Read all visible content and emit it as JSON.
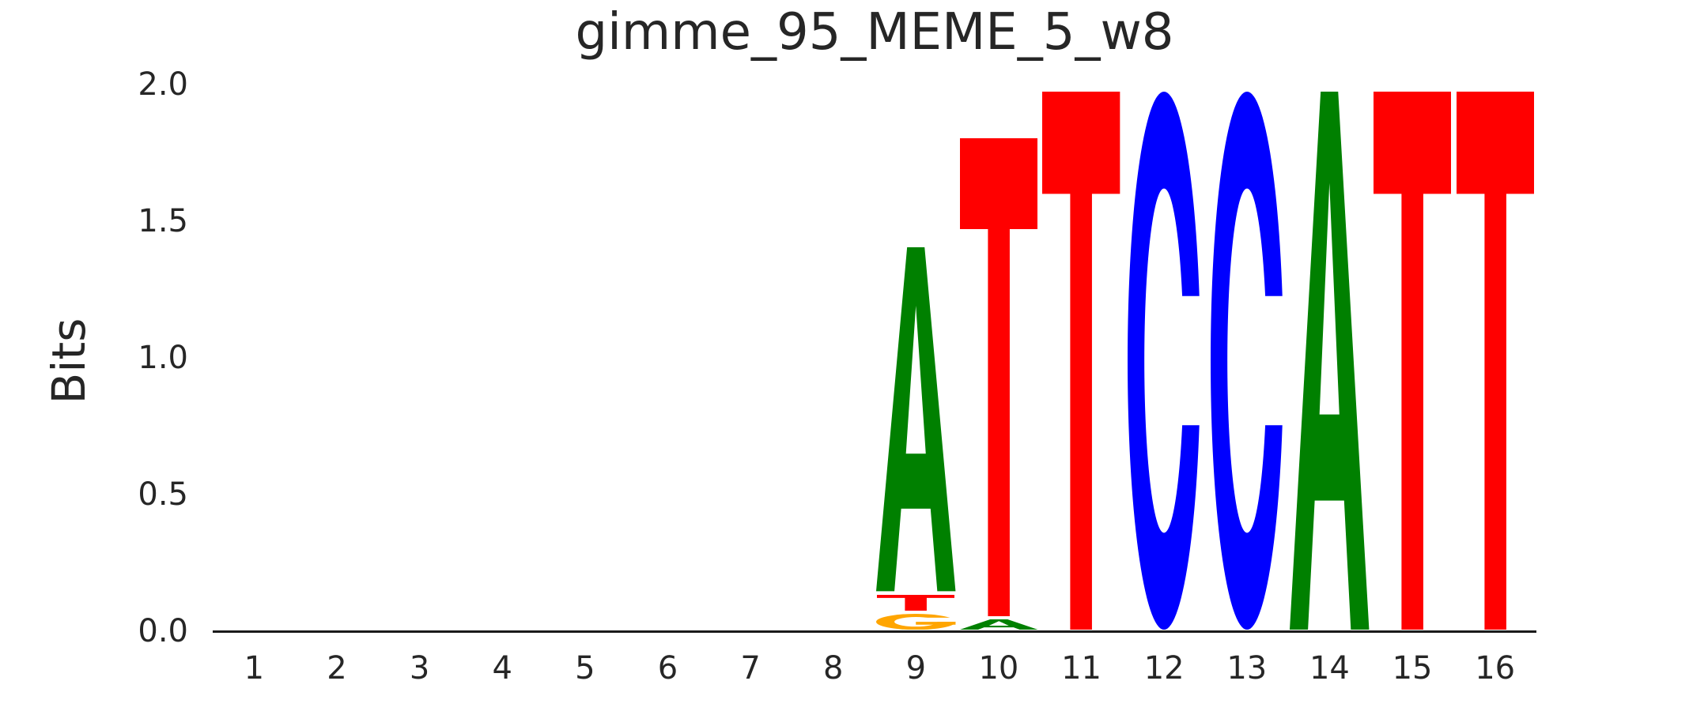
{
  "chart_data": {
    "type": "bar",
    "subtype": "sequence_logo",
    "title": "gimme_95_MEME_5_w8",
    "xlabel": "",
    "ylabel": "Bits",
    "ylim": [
      0,
      2.0
    ],
    "yticks": [
      {
        "value": 0.0,
        "label": "0.0"
      },
      {
        "value": 0.5,
        "label": "0.5"
      },
      {
        "value": 1.0,
        "label": "1.0"
      },
      {
        "value": 1.5,
        "label": "1.5"
      },
      {
        "value": 2.0,
        "label": "2.0"
      }
    ],
    "xticks": [
      "1",
      "2",
      "3",
      "4",
      "5",
      "6",
      "7",
      "8",
      "9",
      "10",
      "11",
      "12",
      "13",
      "14",
      "15",
      "16"
    ],
    "grid": false,
    "legend": "none",
    "letter_colors": {
      "A": "#008000",
      "C": "#0000ff",
      "G": "#ffa500",
      "T": "#ff0000"
    },
    "consensus_positions_9_to_16": "ATTCCATT",
    "stacks": [
      {
        "position": 1,
        "letters": []
      },
      {
        "position": 2,
        "letters": []
      },
      {
        "position": 3,
        "letters": []
      },
      {
        "position": 4,
        "letters": []
      },
      {
        "position": 5,
        "letters": []
      },
      {
        "position": 6,
        "letters": []
      },
      {
        "position": 7,
        "letters": []
      },
      {
        "position": 8,
        "letters": []
      },
      {
        "position": 9,
        "letters": [
          {
            "base": "G",
            "bits": 0.07
          },
          {
            "base": "T",
            "bits": 0.07
          },
          {
            "base": "A",
            "bits": 1.27
          }
        ]
      },
      {
        "position": 10,
        "letters": [
          {
            "base": "A",
            "bits": 0.05
          },
          {
            "base": "T",
            "bits": 1.76
          }
        ]
      },
      {
        "position": 11,
        "letters": [
          {
            "base": "T",
            "bits": 1.98
          }
        ]
      },
      {
        "position": 12,
        "letters": [
          {
            "base": "C",
            "bits": 1.98
          }
        ]
      },
      {
        "position": 13,
        "letters": [
          {
            "base": "C",
            "bits": 1.98
          }
        ]
      },
      {
        "position": 14,
        "letters": [
          {
            "base": "A",
            "bits": 1.98
          }
        ]
      },
      {
        "position": 15,
        "letters": [
          {
            "base": "T",
            "bits": 1.98
          }
        ]
      },
      {
        "position": 16,
        "letters": [
          {
            "base": "T",
            "bits": 1.98
          }
        ]
      }
    ]
  }
}
